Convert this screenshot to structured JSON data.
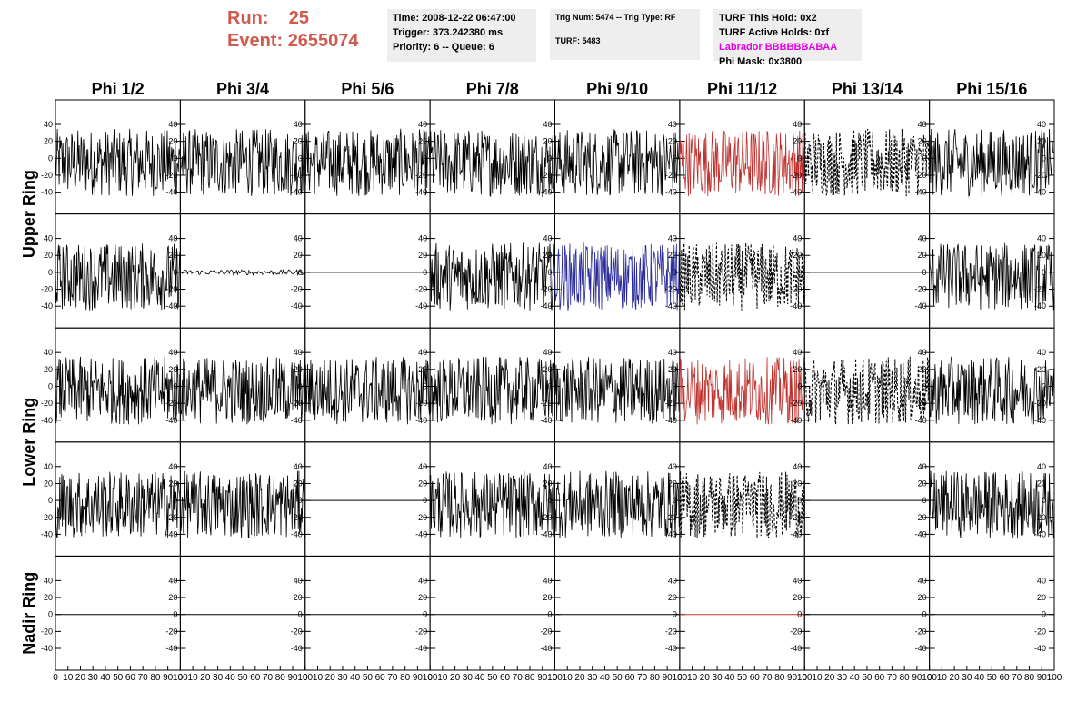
{
  "header": {
    "run_label": "Run:",
    "run_value": "25",
    "event_label": "Event:",
    "event_value": "2655074",
    "time_line": "Time: 2008-12-22 06:47:00",
    "trigger_line": "Trigger: 373.242380 ms",
    "priority_line": "Priority: 6 -- Queue: 6",
    "trig_line": "Trig Num: 5474 -- Trig Type: RF",
    "turf_line": "TURF: 5483",
    "hold_line": "TURF This Hold: 0x2",
    "active_line": "TURF Active Holds: 0xf",
    "labrador_line": "Labrador BBBBBBABAA",
    "phimask_line": "Phi Mask: 0x3800"
  },
  "colors": {
    "header_red": "#d05a4e",
    "trace_red": "#c0302c",
    "trace_blue": "#2b2b9c",
    "magenta": "#e600e6",
    "panel_gray": "#eeeeee"
  },
  "chart_data": {
    "type": "line",
    "columns": [
      "Phi 1/2",
      "Phi 3/4",
      "Phi 5/6",
      "Phi 7/8",
      "Phi 9/10",
      "Phi 11/12",
      "Phi 13/14",
      "Phi 15/16"
    ],
    "rows": [
      "Upper Ring",
      "Lower Ring",
      "Nadir Ring"
    ],
    "row_spans": [
      2,
      2,
      1
    ],
    "xlim": [
      0,
      100
    ],
    "ylim": [
      -55,
      55
    ],
    "yticks": [
      -40,
      -20,
      0,
      20,
      40
    ],
    "xticks": [
      0,
      10,
      20,
      30,
      40,
      50,
      60,
      70,
      80,
      90,
      100
    ],
    "panels": [
      [
        "black",
        "black",
        "black",
        "black",
        "black",
        "red",
        "dashed",
        "black"
      ],
      [
        "black",
        "flat-small",
        "flat",
        "black",
        "blue",
        "dashed",
        "flat",
        "black"
      ],
      [
        "black",
        "black",
        "black",
        "black",
        "black",
        "red",
        "dashed",
        "black"
      ],
      [
        "black",
        "black",
        "flat",
        "black",
        "black",
        "dashed",
        "flat",
        "black"
      ],
      [
        "flat",
        "flat",
        "flat",
        "flat",
        "flat",
        "flat-red",
        "flat",
        "flat"
      ]
    ],
    "amplitude_range": [
      -45,
      35
    ]
  }
}
